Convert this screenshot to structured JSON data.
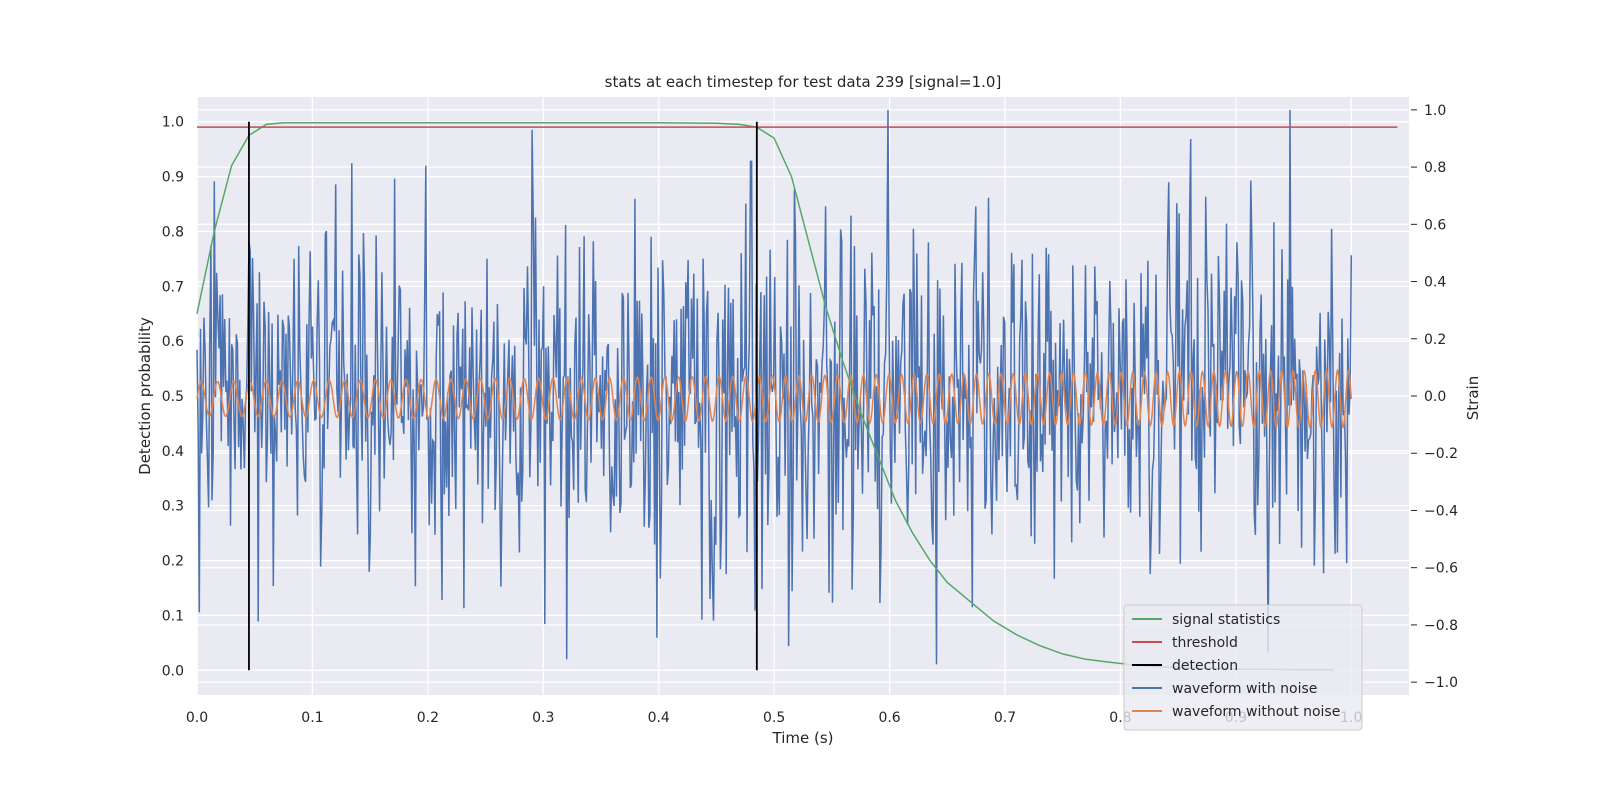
{
  "chart_data": {
    "type": "line",
    "title": "stats at each timestep for test data 239 [signal=1.0]",
    "xlabel": "Time (s)",
    "ylabel_left": "Detection probability",
    "ylabel_right": "Strain",
    "xlim": [
      0.0,
      1.05
    ],
    "ylim_left": [
      -0.045,
      1.045
    ],
    "ylim_right": [
      -1.045,
      1.045
    ],
    "x_ticks": [
      "0.0",
      "0.1",
      "0.2",
      "0.3",
      "0.4",
      "0.5",
      "0.6",
      "0.7",
      "0.8",
      "0.9",
      "1.0"
    ],
    "y_left_ticks": [
      "0.0",
      "0.1",
      "0.2",
      "0.3",
      "0.4",
      "0.5",
      "0.6",
      "0.7",
      "0.8",
      "0.9",
      "1.0"
    ],
    "y_right_ticks": [
      "−1.0",
      "−0.8",
      "−0.6",
      "−0.4",
      "−0.2",
      "0.0",
      "0.2",
      "0.4",
      "0.6",
      "0.8",
      "1.0"
    ],
    "grid": true,
    "legend_position": "lower-right",
    "colors": {
      "background": "#eaeaf2",
      "grid": "#ffffff",
      "signal_statistics": "#55a868",
      "threshold": "#c44e52",
      "detection": "#000000",
      "waveform_with_noise": "#4c72b0",
      "waveform_without_noise": "#dd8452"
    },
    "legend": [
      {
        "label": "signal statistics",
        "color": "#55a868"
      },
      {
        "label": "threshold",
        "color": "#c44e52"
      },
      {
        "label": "detection",
        "color": "#000000"
      },
      {
        "label": "waveform with noise",
        "color": "#4c72b0"
      },
      {
        "label": "waveform without noise",
        "color": "#dd8452"
      }
    ],
    "signal_statistics": {
      "axis": "left",
      "x": [
        0.0,
        0.015,
        0.03,
        0.045,
        0.06,
        0.075,
        0.1,
        0.2,
        0.3,
        0.4,
        0.45,
        0.47,
        0.485,
        0.5,
        0.515,
        0.53,
        0.545,
        0.56,
        0.575,
        0.59,
        0.605,
        0.62,
        0.635,
        0.65,
        0.67,
        0.69,
        0.71,
        0.73,
        0.75,
        0.77,
        0.79,
        0.81,
        0.83,
        0.85,
        0.87,
        0.89,
        0.91,
        0.93,
        0.95,
        0.97,
        0.985
      ],
      "values": [
        0.65,
        0.8,
        0.92,
        0.975,
        0.995,
        0.998,
        0.998,
        0.998,
        0.998,
        0.998,
        0.997,
        0.995,
        0.99,
        0.97,
        0.9,
        0.78,
        0.66,
        0.56,
        0.47,
        0.39,
        0.31,
        0.25,
        0.2,
        0.16,
        0.125,
        0.09,
        0.065,
        0.045,
        0.03,
        0.02,
        0.015,
        0.01,
        0.007,
        0.005,
        0.004,
        0.003,
        0.002,
        0.002,
        0.001,
        0.001,
        0.001
      ]
    },
    "threshold": {
      "axis": "left",
      "value": 0.99,
      "x_range": [
        0.0,
        1.04
      ]
    },
    "detection": {
      "axis": "left",
      "x": [
        0.045,
        0.485
      ],
      "y_range": [
        0.0,
        1.0
      ]
    },
    "waveform_with_noise": {
      "axis": "right",
      "x_range": [
        0.0,
        1.0
      ],
      "sample_count": 1000,
      "amplitude_std": 0.3,
      "peaks": [
        [
          0.32,
          -0.92
        ],
        [
          0.29,
          0.93
        ],
        [
          0.947,
          1.0
        ],
        [
          0.015,
          0.75
        ],
        [
          0.48,
          0.82
        ],
        [
          0.86,
          0.6
        ]
      ]
    },
    "waveform_without_noise": {
      "axis": "right",
      "x_range": [
        0.0,
        1.0
      ],
      "amplitude_start": 0.06,
      "amplitude_end": 0.1,
      "offset": -0.01,
      "cycles": 70
    }
  }
}
